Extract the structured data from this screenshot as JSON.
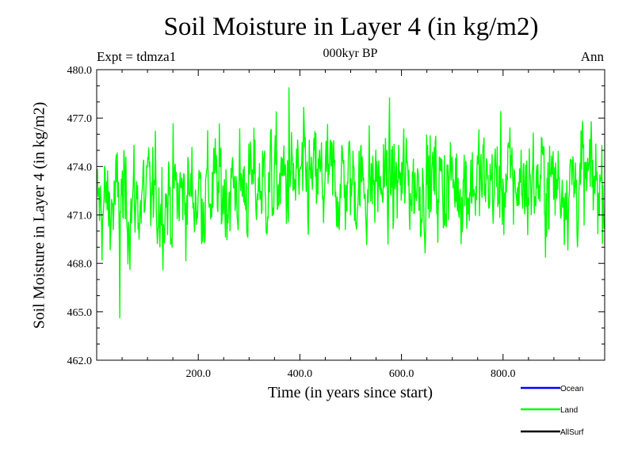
{
  "chart_data": {
    "type": "line",
    "title": "Soil Moisture in Layer 4 (in kg/m2)",
    "subtitle": "000kyr BP",
    "expt_label": "Expt = tdmza1",
    "period_label": "Ann",
    "xlabel": "Time (in years since start)",
    "ylabel": "Soil Moisture in Layer 4 (in kg/m2)",
    "xlim": [
      0,
      1000
    ],
    "ylim": [
      462.0,
      480.0
    ],
    "x_ticks": [
      200,
      400,
      600,
      800
    ],
    "x_tick_labels": [
      "200.0",
      "400.0",
      "600.0",
      "800.0"
    ],
    "y_ticks": [
      462,
      465,
      468,
      471,
      474,
      477,
      480
    ],
    "y_tick_labels": [
      "462.0",
      "465.0",
      "468.0",
      "471.0",
      "474.0",
      "477.0",
      "480.0"
    ],
    "series": [
      {
        "name": "Ocean",
        "color": "#0000ff",
        "values": []
      },
      {
        "name": "Land",
        "color": "#00ff00",
        "values": []
      },
      {
        "name": "AllSurf",
        "color": "#000000",
        "values": []
      }
    ],
    "land_signal": {
      "n_years": 1000,
      "mean_early": 471.5,
      "mean_late": 473.0,
      "std": 1.7,
      "min_value": 464.6,
      "min_at_year": 45,
      "max_value": 478.9,
      "max_at_year": 378
    }
  }
}
